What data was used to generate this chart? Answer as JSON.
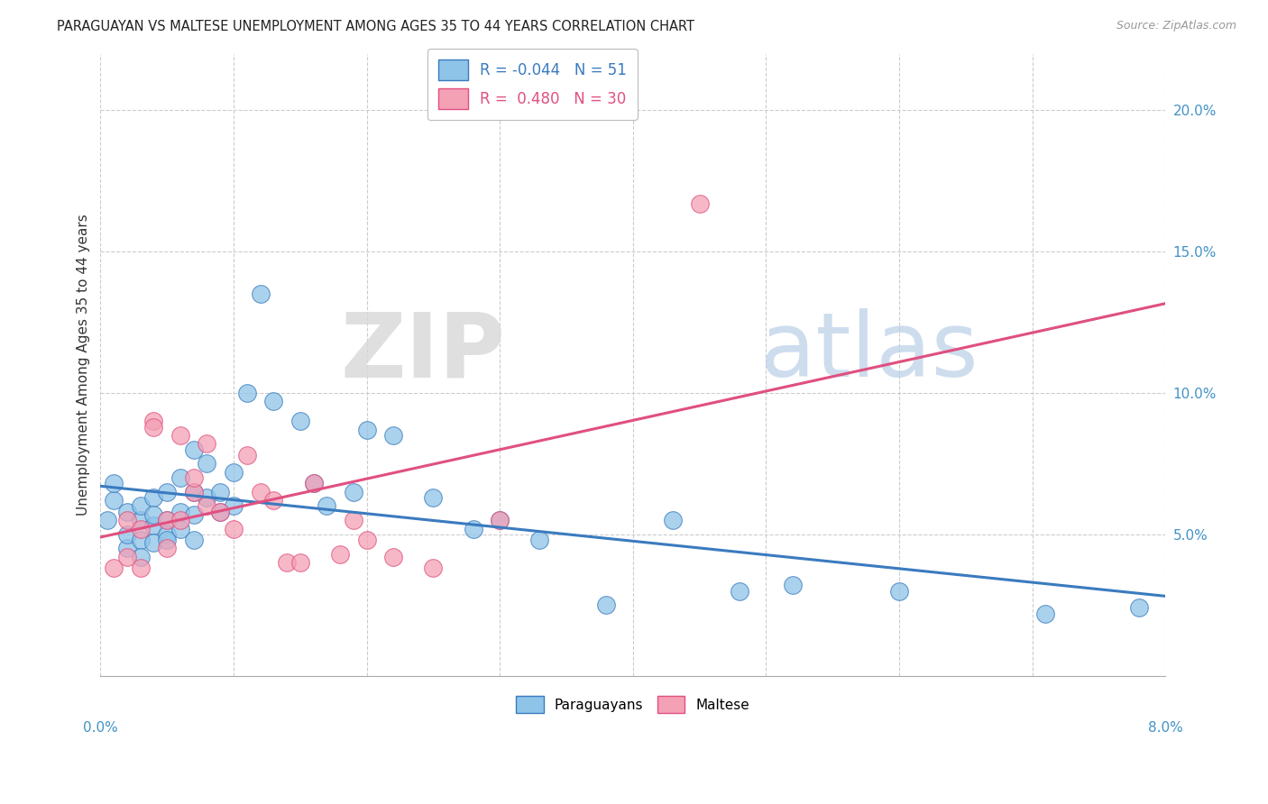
{
  "title": "PARAGUAYAN VS MALTESE UNEMPLOYMENT AMONG AGES 35 TO 44 YEARS CORRELATION CHART",
  "source": "Source: ZipAtlas.com",
  "ylabel": "Unemployment Among Ages 35 to 44 years",
  "legend_paraguayans": "Paraguayans",
  "legend_maltese": "Maltese",
  "R_paraguayans": -0.044,
  "N_paraguayans": 51,
  "R_maltese": 0.48,
  "N_maltese": 30,
  "color_paraguayans": "#8ec4e8",
  "color_maltese": "#f4a0b5",
  "color_paraguayans_line": "#3a7bbf",
  "color_maltese_line": "#e05080",
  "watermark_zip": "ZIP",
  "watermark_atlas": "atlas",
  "xlim": [
    0.0,
    0.08
  ],
  "ylim": [
    0.0,
    0.22
  ],
  "yticks": [
    0.05,
    0.1,
    0.15,
    0.2
  ],
  "ytick_labels": [
    "5.0%",
    "10.0%",
    "15.0%",
    "20.0%"
  ],
  "paraguayans_x": [
    0.0005,
    0.001,
    0.001,
    0.002,
    0.002,
    0.002,
    0.003,
    0.003,
    0.003,
    0.003,
    0.004,
    0.004,
    0.004,
    0.004,
    0.005,
    0.005,
    0.005,
    0.005,
    0.006,
    0.006,
    0.006,
    0.007,
    0.007,
    0.007,
    0.007,
    0.008,
    0.008,
    0.009,
    0.009,
    0.01,
    0.01,
    0.011,
    0.012,
    0.013,
    0.015,
    0.016,
    0.017,
    0.019,
    0.02,
    0.022,
    0.025,
    0.028,
    0.03,
    0.033,
    0.038,
    0.043,
    0.048,
    0.052,
    0.06,
    0.071,
    0.078
  ],
  "paraguayans_y": [
    0.055,
    0.062,
    0.068,
    0.045,
    0.05,
    0.058,
    0.055,
    0.06,
    0.048,
    0.042,
    0.053,
    0.047,
    0.063,
    0.057,
    0.065,
    0.055,
    0.05,
    0.048,
    0.07,
    0.058,
    0.052,
    0.065,
    0.057,
    0.08,
    0.048,
    0.063,
    0.075,
    0.058,
    0.065,
    0.072,
    0.06,
    0.1,
    0.135,
    0.097,
    0.09,
    0.068,
    0.06,
    0.065,
    0.087,
    0.085,
    0.063,
    0.052,
    0.055,
    0.048,
    0.025,
    0.055,
    0.03,
    0.032,
    0.03,
    0.022,
    0.024
  ],
  "maltese_x": [
    0.001,
    0.002,
    0.002,
    0.003,
    0.003,
    0.004,
    0.004,
    0.005,
    0.005,
    0.006,
    0.006,
    0.007,
    0.007,
    0.008,
    0.008,
    0.009,
    0.01,
    0.011,
    0.012,
    0.013,
    0.014,
    0.015,
    0.016,
    0.018,
    0.019,
    0.02,
    0.022,
    0.025,
    0.03,
    0.045
  ],
  "maltese_y": [
    0.038,
    0.042,
    0.055,
    0.052,
    0.038,
    0.09,
    0.088,
    0.055,
    0.045,
    0.055,
    0.085,
    0.065,
    0.07,
    0.06,
    0.082,
    0.058,
    0.052,
    0.078,
    0.065,
    0.062,
    0.04,
    0.04,
    0.068,
    0.043,
    0.055,
    0.048,
    0.042,
    0.038,
    0.055,
    0.167
  ]
}
